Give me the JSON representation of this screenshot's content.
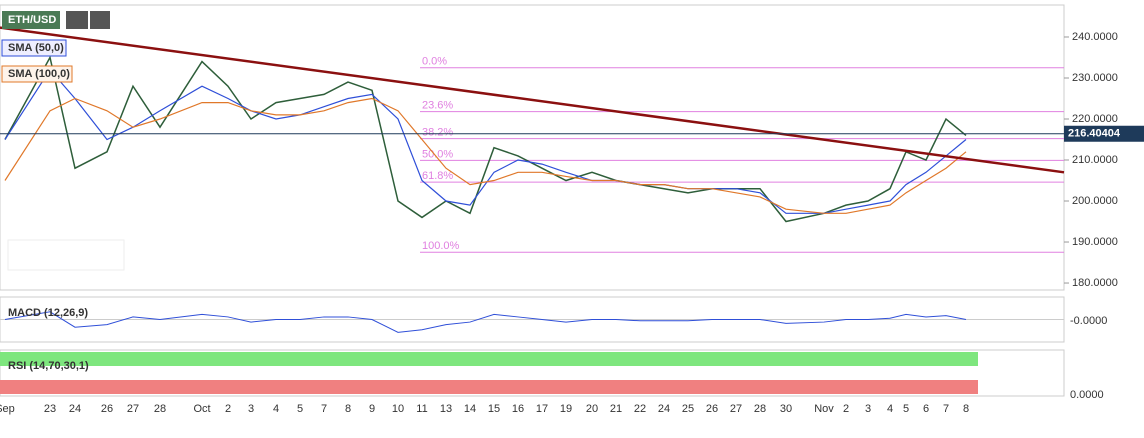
{
  "chart_data": {
    "type": "line",
    "series": [
      {
        "name": "ETH/USD",
        "color": "#2e5e3a",
        "values": [
          215,
          235,
          208,
          212,
          228,
          218,
          234,
          228,
          220,
          224,
          225,
          226,
          229,
          227,
          200,
          196,
          200,
          197,
          213,
          211,
          208,
          205,
          207,
          205,
          204,
          203,
          202,
          203,
          203,
          203,
          195,
          197,
          199,
          200,
          203,
          212,
          210,
          220,
          216
        ]
      },
      {
        "name": "SMA (50,0)",
        "color": "#2f4fd8",
        "values": [
          215,
          232,
          225,
          215,
          218,
          222,
          228,
          225,
          222,
          220,
          221,
          223,
          225,
          226,
          220,
          205,
          200,
          199,
          207,
          210,
          209,
          207,
          205,
          205,
          204,
          204,
          203,
          203,
          203,
          202,
          197,
          197,
          198,
          199,
          200,
          204,
          207,
          211,
          215
        ]
      },
      {
        "name": "SMA (100,0)",
        "color": "#e0782a",
        "values": [
          205,
          222,
          225,
          222,
          218,
          220,
          224,
          224,
          222,
          221,
          221,
          222,
          224,
          225,
          222,
          215,
          208,
          204,
          205,
          207,
          207,
          206,
          205,
          205,
          204,
          204,
          203,
          203,
          202,
          201,
          198,
          197,
          197,
          198,
          199,
          202,
          205,
          208,
          212
        ]
      }
    ],
    "categories": [
      "Sep",
      "23",
      "24",
      "26",
      "27",
      "28",
      "Oct",
      "2",
      "3",
      "4",
      "5",
      "7",
      "8",
      "9",
      "10",
      "11",
      "13",
      "14",
      "15",
      "16",
      "17",
      "19",
      "20",
      "21",
      "22",
      "24",
      "25",
      "26",
      "27",
      "28",
      "30",
      "Nov",
      "2",
      "3",
      "4",
      "5",
      "6",
      "7",
      "8"
    ],
    "ylim": [
      178.3,
      247.8
    ],
    "yticks": [
      {
        "value": 180,
        "label": "180.0000"
      },
      {
        "value": 190,
        "label": "190.0000"
      },
      {
        "value": 200,
        "label": "200.0000"
      },
      {
        "value": 210,
        "label": "210.0000"
      },
      {
        "value": 220,
        "label": "220.0000"
      },
      {
        "value": 230,
        "label": "230.0000"
      },
      {
        "value": 240,
        "label": "240.0000"
      }
    ],
    "last_price": 216.40404,
    "trendline": [
      242.3,
      207.0
    ],
    "fib_levels": [
      {
        "label": "0.0%",
        "value": 232.5
      },
      {
        "label": "23.6%",
        "value": 221.8
      },
      {
        "label": "38.2%",
        "value": 215.2
      },
      {
        "label": "50.0%",
        "value": 209.9
      },
      {
        "label": "61.8%",
        "value": 204.6
      },
      {
        "label": "100.0%",
        "value": 187.5
      }
    ],
    "macd": {
      "name": "MACD (12,26,9)",
      "color": "#2f4fd8",
      "ylim": [
        -8,
        8
      ],
      "yticks": [
        {
          "value": 0,
          "label": "-0.0000"
        }
      ],
      "values": [
        0,
        3,
        -3,
        -2,
        1,
        0,
        2,
        1,
        -1,
        0,
        0,
        1,
        1,
        0,
        -5,
        -4,
        -2,
        -1,
        2,
        1,
        0,
        -1,
        0,
        0,
        -0.5,
        -0.5,
        -0.5,
        0,
        0,
        0,
        -1.5,
        -1,
        0,
        0,
        0.5,
        2,
        1,
        1.5,
        0
      ]
    },
    "rsi": {
      "name": "RSI (14,70,30,1)",
      "yticks": [
        {
          "value": 0,
          "label": "0.0000"
        }
      ]
    }
  }
}
